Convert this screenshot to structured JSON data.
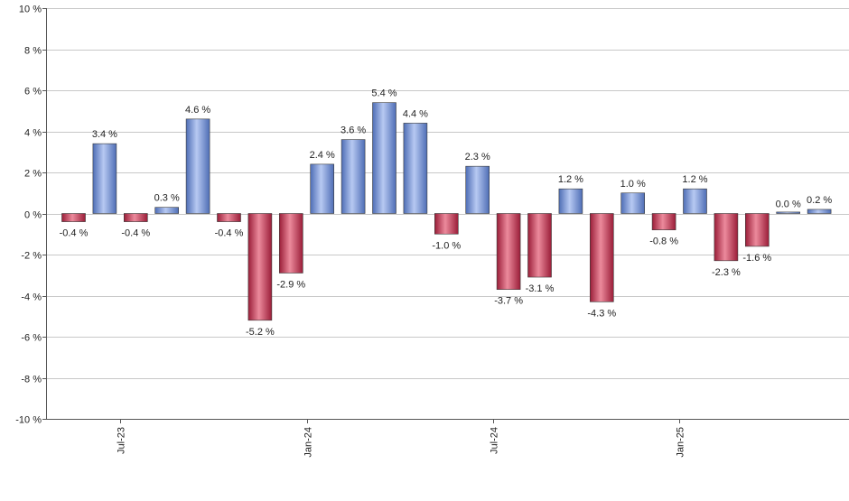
{
  "chart_data": {
    "type": "bar",
    "title": "",
    "xlabel": "",
    "ylabel": "",
    "ylim": [
      -10,
      10
    ],
    "yticks": [
      10,
      8,
      6,
      4,
      2,
      0,
      -2,
      -4,
      -6,
      -8,
      -10
    ],
    "ytick_labels": [
      "10 %",
      "8 %",
      "6 %",
      "4 %",
      "2 %",
      "0 %",
      "-2 %",
      "-4 %",
      "-6 %",
      "-8 %",
      "-10 %"
    ],
    "x_ticks": [
      {
        "label": "Jul-23",
        "at_bar": 2
      },
      {
        "label": "Jan-24",
        "at_bar": 8
      },
      {
        "label": "Jul-24",
        "at_bar": 14
      },
      {
        "label": "Jan-25",
        "at_bar": 20
      }
    ],
    "values": [
      -0.4,
      3.4,
      -0.4,
      0.3,
      4.6,
      -0.4,
      -5.2,
      -2.9,
      2.4,
      3.6,
      5.4,
      4.4,
      -1.0,
      2.3,
      -3.7,
      -3.1,
      1.2,
      -4.3,
      1.0,
      -0.8,
      1.2,
      -2.3,
      -1.6,
      0.0,
      0.2
    ],
    "data_labels": [
      "-0.4 %",
      "3.4 %",
      "-0.4 %",
      "0.3 %",
      "4.6 %",
      "-0.4 %",
      "-5.2 %",
      "-2.9 %",
      "2.4 %",
      "3.6 %",
      "5.4 %",
      "4.4 %",
      "-1.0 %",
      "2.3 %",
      "-3.7 %",
      "-3.1 %",
      "1.2 %",
      "-4.3 %",
      "1.0 %",
      "-0.8 %",
      "1.2 %",
      "-2.3 %",
      "-1.6 %",
      "0.0 %",
      "0.2 %"
    ],
    "grid": true,
    "legend": "none",
    "colors": {
      "positive": "#6f8fd6",
      "positive_light": "#b7c9f2",
      "positive_dark": "#4e6db5",
      "negative": "#c8304f",
      "negative_light": "#ec8a9c",
      "negative_dark": "#9a1d38"
    }
  }
}
